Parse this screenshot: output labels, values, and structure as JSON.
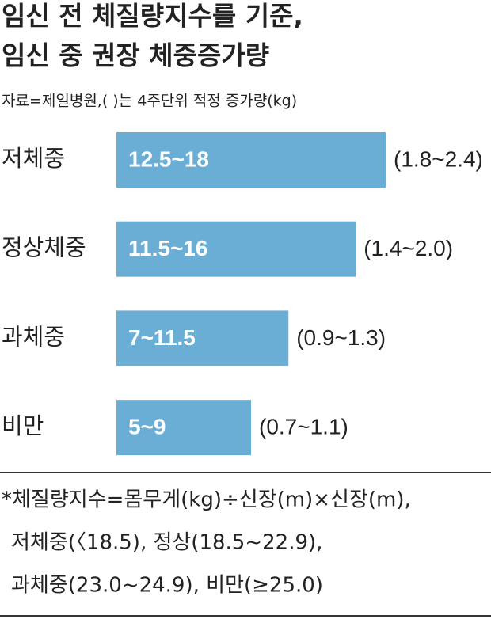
{
  "chart_data": {
    "type": "bar",
    "title": [
      "임신 전 체질량지수를 기준,",
      "임신 중 권장 체중증가량"
    ],
    "subtitle": "자료=제일병원,( )는 4주단위 적정 증가량(kg)",
    "categories": [
      "저체중",
      "정상체중",
      "과체중",
      "비만"
    ],
    "values": [
      18,
      16,
      11.5,
      9
    ],
    "value_labels": [
      "12.5~18",
      "11.5~16",
      "7~11.5",
      "5~9"
    ],
    "annotations": [
      "(1.8~2.4)",
      "(1.4~2.0)",
      "(0.9~1.3)",
      "(0.7~1.1)"
    ],
    "color": "#6aaed6",
    "footnote": [
      "*체질량지수=몸무게(kg)÷신장(m)×신장(m),",
      "저체중(〈18.5), 정상(18.5~22.9),",
      "과체중(23.0~24.9), 비만(≥25.0)"
    ]
  }
}
